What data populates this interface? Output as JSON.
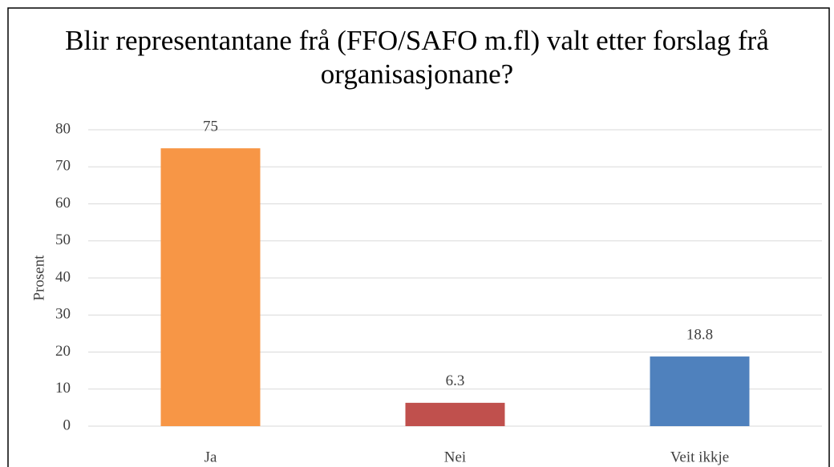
{
  "chart_data": {
    "type": "bar",
    "title": "Blir representantane frå (FFO/SAFO m.fl) valt etter forslag frå organisasjonane?",
    "y_label": "Prosent",
    "categories": [
      "Ja",
      "Nei",
      "Veit ikkje"
    ],
    "values": [
      75,
      6.3,
      18.8
    ],
    "colors": [
      "#f79646",
      "#c0504d",
      "#4f81bd"
    ],
    "ylim": [
      0,
      80
    ],
    "yticks": [
      0,
      10,
      20,
      30,
      40,
      50,
      60,
      70,
      80
    ],
    "grid": true
  }
}
